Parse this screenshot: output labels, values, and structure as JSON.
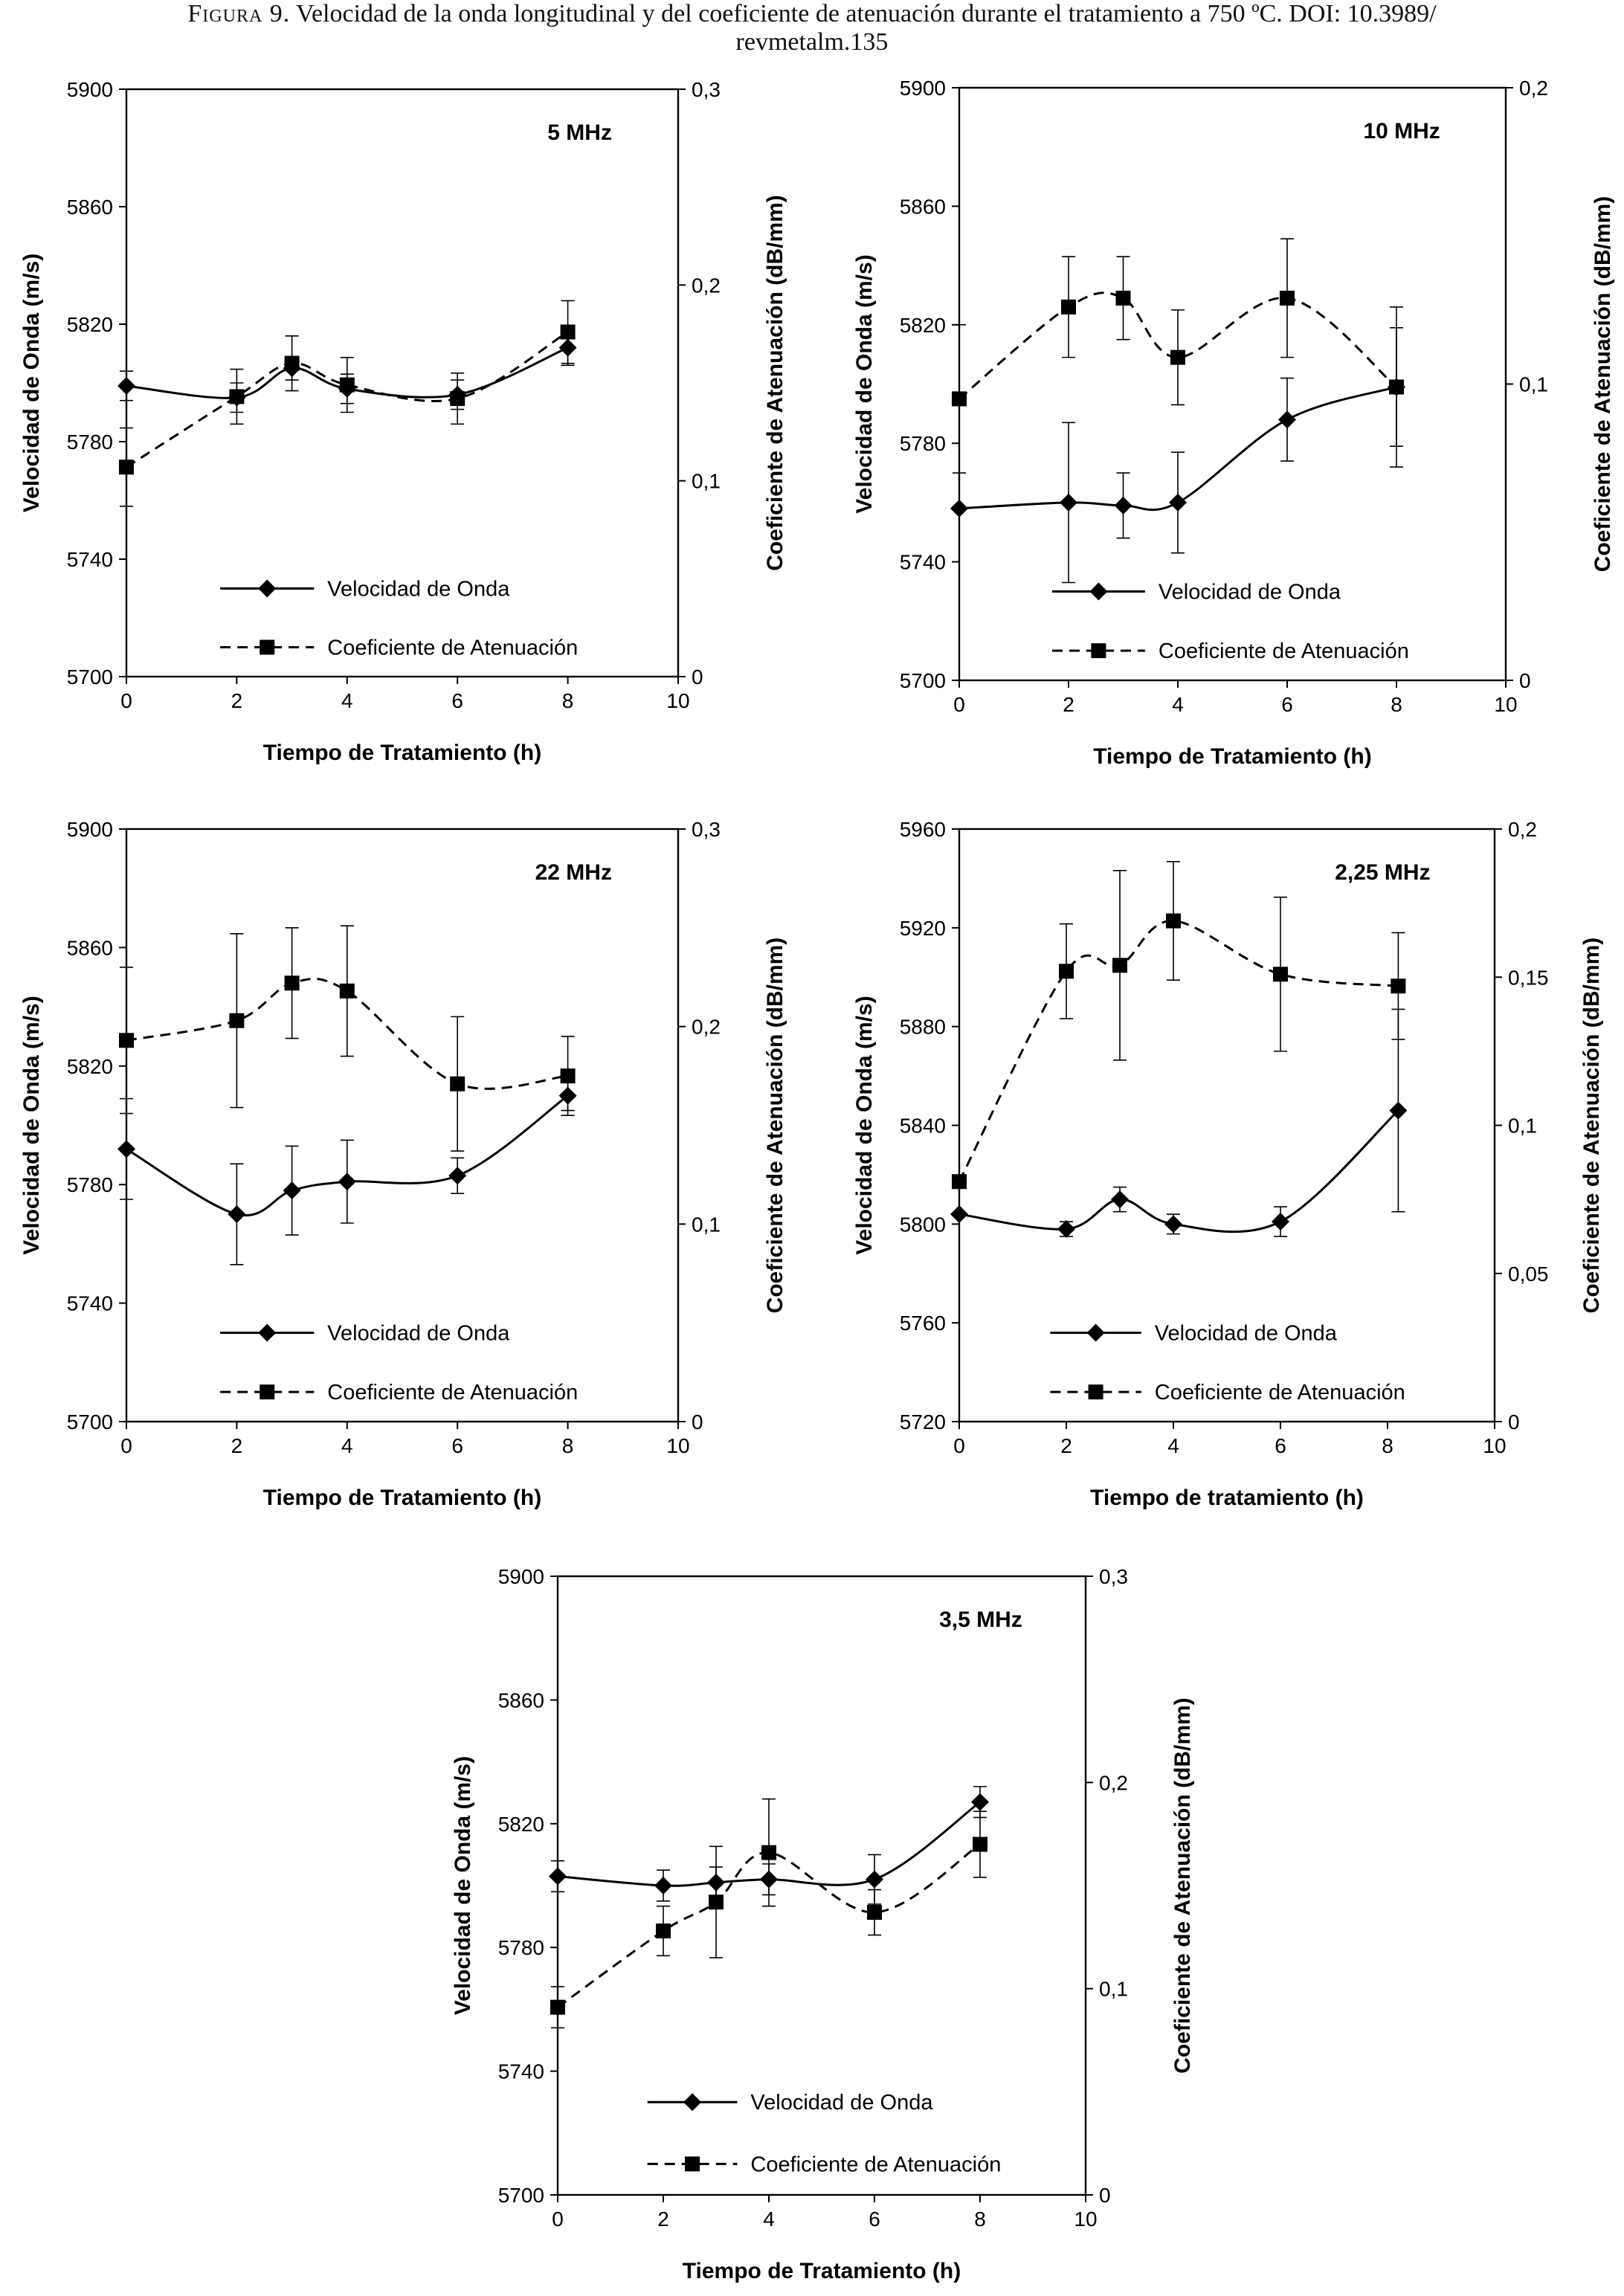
{
  "caption": {
    "label": "Figura 9.",
    "text_line1": "Velocidad de la onda longitudinal y del coeficiente de atenuación durante el tratamiento a 750 ºC. DOI: 10.3989/",
    "text_line2": "revmetalm.135"
  },
  "colors": {
    "ink": "#000000",
    "background": "#ffffff"
  },
  "chart_data": [
    {
      "type": "line",
      "annotation": "5 MHz",
      "xlabel": "Tiempo de Tratamiento (h)",
      "ylabel": "Velocidad de Onda (m/s)",
      "ylabel2": "Coeficiente de Atenuación (dB/mm)",
      "xlim": [
        0,
        10
      ],
      "ylim": [
        5700,
        5900
      ],
      "y2lim": [
        0,
        0.3
      ],
      "xticks": [
        "0",
        "2",
        "4",
        "6",
        "8",
        "10"
      ],
      "yticks": [
        "5700",
        "5740",
        "5780",
        "5820",
        "5860",
        "5900"
      ],
      "y2ticks": [
        "0",
        "0,1",
        "0,2",
        "0,3"
      ],
      "legend_position": "lower-left",
      "series": [
        {
          "name": "Velocidad de Onda",
          "axis": "left",
          "marker": "diamond",
          "dash": "solid",
          "x": [
            0,
            2,
            3,
            4,
            6,
            8
          ],
          "y": [
            5799,
            5795,
            5805,
            5798,
            5796,
            5812
          ],
          "err": [
            5,
            5,
            4,
            5,
            5,
            6
          ]
        },
        {
          "name": "Coeficiente de Atenuación",
          "axis": "right",
          "marker": "square",
          "dash": "dashed",
          "x": [
            0,
            2,
            3,
            4,
            6,
            8
          ],
          "y": [
            0.107,
            0.143,
            0.16,
            0.149,
            0.142,
            0.176
          ],
          "err": [
            0.02,
            0.014,
            0.014,
            0.014,
            0.013,
            0.016
          ]
        }
      ]
    },
    {
      "type": "line",
      "annotation": "10 MHz",
      "xlabel": "Tiempo de Tratamiento (h)",
      "ylabel": "Velocidad de Onda (m/s)",
      "ylabel2": "Coeficiente de Atenuación (dB/mm)",
      "xlim": [
        0,
        10
      ],
      "ylim": [
        5700,
        5900
      ],
      "y2lim": [
        0,
        0.2
      ],
      "xticks": [
        "0",
        "2",
        "4",
        "6",
        "8",
        "10"
      ],
      "yticks": [
        "5700",
        "5740",
        "5780",
        "5820",
        "5860",
        "5900"
      ],
      "y2ticks": [
        "0",
        "0,1",
        "0,2"
      ],
      "legend_position": "lower-left",
      "series": [
        {
          "name": "Velocidad de Onda",
          "axis": "left",
          "marker": "diamond",
          "dash": "solid",
          "x": [
            0,
            2,
            3,
            4,
            6,
            8
          ],
          "y": [
            5758,
            5760,
            5759,
            5760,
            5788,
            5799
          ],
          "err": [
            0,
            27,
            11,
            17,
            14,
            20
          ]
        },
        {
          "name": "Coeficiente de Atenuación",
          "axis": "right",
          "marker": "square",
          "dash": "dashed",
          "x": [
            0,
            2,
            3,
            4,
            6,
            8
          ],
          "y": [
            0.095,
            0.126,
            0.129,
            0.109,
            0.129,
            0.099
          ],
          "err": [
            0.025,
            0.017,
            0.014,
            0.016,
            0.02,
            0.027
          ]
        }
      ]
    },
    {
      "type": "line",
      "annotation": "22 MHz",
      "xlabel": "Tiempo de Tratamiento (h)",
      "ylabel": "Velocidad de Onda (m/s)",
      "ylabel2": "Coeficiente de Atenuación (dB/mm)",
      "xlim": [
        0,
        10
      ],
      "ylim": [
        5700,
        5900
      ],
      "y2lim": [
        0,
        0.3
      ],
      "xticks": [
        "0",
        "2",
        "4",
        "6",
        "8",
        "10"
      ],
      "yticks": [
        "5700",
        "5740",
        "5780",
        "5820",
        "5860",
        "5900"
      ],
      "y2ticks": [
        "0",
        "0,1",
        "0,2",
        "0,3"
      ],
      "legend_position": "lower-left",
      "series": [
        {
          "name": "Velocidad de Onda",
          "axis": "left",
          "marker": "diamond",
          "dash": "solid",
          "x": [
            0,
            2,
            3,
            4,
            6,
            8
          ],
          "y": [
            5792,
            5770,
            5778,
            5781,
            5783,
            5810
          ],
          "err": [
            17,
            17,
            15,
            14,
            6,
            5
          ]
        },
        {
          "name": "Coeficiente de Atenuación",
          "axis": "right",
          "marker": "square",
          "dash": "dashed",
          "x": [
            0,
            2,
            3,
            4,
            6,
            8
          ],
          "y": [
            0.193,
            0.203,
            0.222,
            0.218,
            0.171,
            0.175
          ],
          "err": [
            0.037,
            0.044,
            0.028,
            0.033,
            0.034,
            0.02
          ]
        }
      ]
    },
    {
      "type": "line",
      "annotation": "2,25 MHz",
      "xlabel": "Tiempo de tratamiento (h)",
      "ylabel": "Velocidad de Onda (m/s)",
      "ylabel2": "Coeficiente de Atenuación (dB/mm)",
      "xlim": [
        0,
        10
      ],
      "ylim": [
        5720,
        5960
      ],
      "y2lim": [
        0,
        0.2
      ],
      "xticks": [
        "0",
        "2",
        "4",
        "6",
        "8",
        "10"
      ],
      "yticks": [
        "5720",
        "5760",
        "5800",
        "5840",
        "5880",
        "5920",
        "5960"
      ],
      "y2ticks": [
        "0",
        "0,05",
        "0,1",
        "0,15",
        "0,2"
      ],
      "legend_position": "lower-left",
      "series": [
        {
          "name": "Velocidad de Onda",
          "axis": "left",
          "marker": "diamond",
          "dash": "solid",
          "x": [
            0,
            2,
            3,
            4,
            6,
            8.2
          ],
          "y": [
            5804,
            5798,
            5810,
            5800,
            5801,
            5846
          ],
          "err": [
            0,
            3,
            5,
            4,
            6,
            41
          ]
        },
        {
          "name": "Coeficiente de Atenuación",
          "axis": "right",
          "marker": "square",
          "dash": "dashed",
          "x": [
            0,
            2,
            3,
            4,
            6,
            8.2
          ],
          "y": [
            0.081,
            0.152,
            0.154,
            0.169,
            0.151,
            0.147
          ],
          "err": [
            0,
            0.016,
            0.032,
            0.02,
            0.026,
            0.018
          ]
        }
      ]
    },
    {
      "type": "line",
      "annotation": "3,5 MHz",
      "xlabel": "Tiempo de Tratamiento (h)",
      "ylabel": "Velocidad de Onda (m/s)",
      "ylabel2": "Coeficiente de Atenuación (dB/mm)",
      "xlim": [
        0,
        10
      ],
      "ylim": [
        5700,
        5900
      ],
      "y2lim": [
        0,
        0.3
      ],
      "xticks": [
        "0",
        "2",
        "4",
        "6",
        "8",
        "10"
      ],
      "yticks": [
        "5700",
        "5740",
        "5780",
        "5820",
        "5860",
        "5900"
      ],
      "y2ticks": [
        "0",
        "0,1",
        "0,2",
        "0,3"
      ],
      "legend_position": "lower-left",
      "series": [
        {
          "name": "Velocidad de Onda",
          "axis": "left",
          "marker": "diamond",
          "dash": "solid",
          "x": [
            0,
            2,
            3,
            4,
            6,
            8
          ],
          "y": [
            5803,
            5800,
            5801,
            5802,
            5802,
            5827
          ],
          "err": [
            5,
            5,
            5,
            5,
            8,
            5
          ]
        },
        {
          "name": "Coeficiente de Atenuación",
          "axis": "right",
          "marker": "square",
          "dash": "dashed",
          "x": [
            0,
            2,
            3,
            4,
            6,
            8
          ],
          "y": [
            0.091,
            0.128,
            0.142,
            0.166,
            0.137,
            0.17
          ],
          "err": [
            0.01,
            0.012,
            0.027,
            0.026,
            0.011,
            0.016
          ]
        }
      ]
    }
  ]
}
